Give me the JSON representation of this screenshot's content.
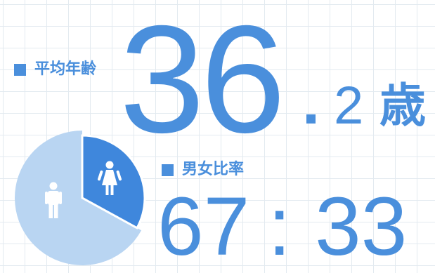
{
  "colors": {
    "accent": "#4a8fdc",
    "pie_light": "#b9d5f2",
    "pie_dark": "#3f87dc",
    "icon_fill": "#ffffff",
    "grid": "#e3eaf0"
  },
  "labels": {
    "avg_age": "平均年齢",
    "ratio": "男女比率"
  },
  "average_age": {
    "integer_part": "36",
    "decimal_part": "2",
    "unit": "歳"
  },
  "gender_ratio": {
    "male": "67",
    "separator": ":",
    "female": "33"
  },
  "icons": {
    "male": "male-person-icon",
    "female": "female-person-icon",
    "square": "square-bullet-icon"
  },
  "chart_data": {
    "type": "pie",
    "title": "",
    "categories": [
      "",
      ""
    ],
    "values": [
      67,
      33
    ]
  }
}
